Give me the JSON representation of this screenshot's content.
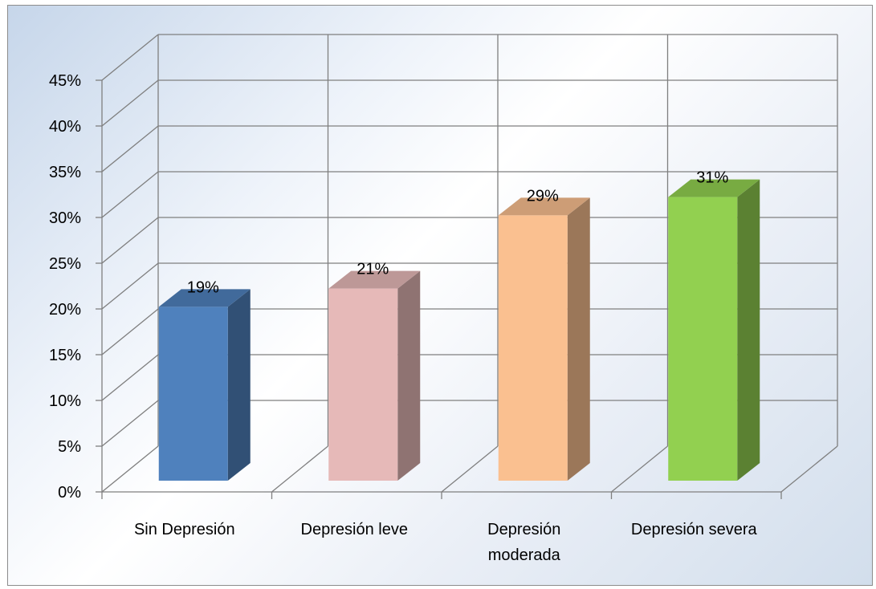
{
  "chart_data": {
    "type": "bar",
    "style": "3d-column",
    "categories": [
      "Sin Depresión",
      "Depresión leve",
      "Depresión moderada",
      "Depresión severa"
    ],
    "category_label_lines": [
      [
        "Sin Depresión"
      ],
      [
        "Depresión leve"
      ],
      [
        "Depresión",
        "moderada"
      ],
      [
        "Depresión severa"
      ]
    ],
    "values": [
      19,
      21,
      29,
      31
    ],
    "value_labels": [
      "19%",
      "21%",
      "29%",
      "31%"
    ],
    "colors": [
      "#4f81bd",
      "#e6b9b8",
      "#fac090",
      "#92d050"
    ],
    "y_ticks": [
      "0%",
      "5%",
      "10%",
      "15%",
      "20%",
      "25%",
      "30%",
      "35%",
      "40%",
      "45%"
    ],
    "ylim": [
      0,
      45
    ],
    "grid": true,
    "legend": "none",
    "title": "",
    "xlabel": "",
    "ylabel": ""
  }
}
